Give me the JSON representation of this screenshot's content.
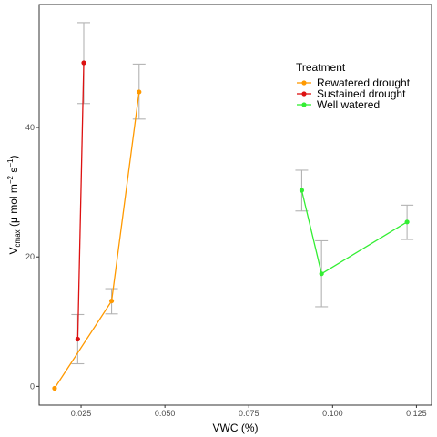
{
  "chart_data": {
    "type": "line",
    "xlabel": "VWC (%)",
    "ylabel": {
      "base": "V",
      "sub": "cmax",
      "mid": " (μ mol m",
      "sup1": "−2",
      "mid2": " s",
      "sup2": "−1",
      "end": ")"
    },
    "xlim": [
      0.0125,
      0.1295
    ],
    "ylim": [
      -2.9,
      59.0
    ],
    "x_ticks": [
      0.025,
      0.05,
      0.075,
      0.1,
      0.125
    ],
    "x_tick_labels": [
      "0.025",
      "0.050",
      "0.075",
      "0.100",
      "0.125"
    ],
    "y_ticks": [
      0,
      20,
      40
    ],
    "y_tick_labels": [
      "0",
      "20",
      "40"
    ],
    "grid": false,
    "legend": {
      "title": "Treatment",
      "placement": "top-right"
    },
    "error_bar_color": "#b3b3b3",
    "series": [
      {
        "name": "Rewatered drought",
        "color": "#ff9900",
        "points": [
          {
            "x": 0.0171,
            "y": -0.3,
            "lo": null,
            "hi": null
          },
          {
            "x": 0.0341,
            "y": 13.2,
            "lo": 11.2,
            "hi": 15.1
          },
          {
            "x": 0.0423,
            "y": 45.5,
            "lo": 41.3,
            "hi": 49.8
          }
        ]
      },
      {
        "name": "Sustained drought",
        "color": "#dd1111",
        "points": [
          {
            "x": 0.024,
            "y": 7.3,
            "lo": 3.5,
            "hi": 11.1
          },
          {
            "x": 0.0258,
            "y": 50.0,
            "lo": 43.7,
            "hi": 56.2
          }
        ]
      },
      {
        "name": "Well watered",
        "color": "#33ee33",
        "points": [
          {
            "x": 0.0908,
            "y": 30.3,
            "lo": 27.1,
            "hi": 33.4
          },
          {
            "x": 0.0967,
            "y": 17.4,
            "lo": 12.3,
            "hi": 22.5
          },
          {
            "x": 0.1222,
            "y": 25.4,
            "lo": 22.7,
            "hi": 28.0
          }
        ]
      }
    ]
  }
}
